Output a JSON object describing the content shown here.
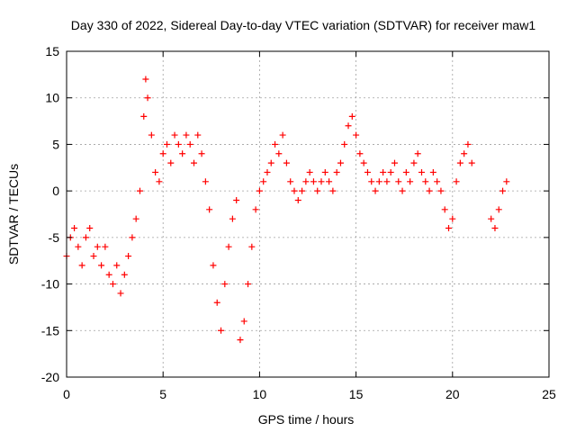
{
  "chart_data": {
    "type": "scatter",
    "title": "Day 330 of 2022, Sidereal Day-to-day VTEC variation (SDTVAR) for receiver maw1",
    "xlabel": "GPS time / hours",
    "ylabel": "SDTVAR / TECUs",
    "xlim": [
      0,
      25
    ],
    "ylim": [
      -20,
      15
    ],
    "x_ticks": [
      0,
      5,
      10,
      15,
      20,
      25
    ],
    "x_tick_labels": [
      "0",
      "5",
      "10",
      "15",
      "20",
      "25"
    ],
    "y_ticks": [
      -20,
      -15,
      -10,
      -5,
      0,
      5,
      10,
      15
    ],
    "y_tick_labels": [
      "-20",
      "-15",
      "-10",
      "-5",
      "0",
      "5",
      "10",
      "15"
    ],
    "grid": true,
    "marker": "+",
    "series": [
      {
        "name": "SDTVAR",
        "color": "#ff0000",
        "x": [
          0.0,
          0.2,
          0.4,
          0.6,
          0.8,
          1.0,
          1.2,
          1.4,
          1.6,
          1.8,
          2.0,
          2.2,
          2.4,
          2.6,
          2.8,
          3.0,
          3.2,
          3.4,
          3.6,
          3.8,
          4.0,
          4.1,
          4.2,
          4.4,
          4.6,
          4.8,
          5.0,
          5.2,
          5.4,
          5.6,
          5.8,
          6.0,
          6.2,
          6.4,
          6.6,
          6.8,
          7.0,
          7.2,
          7.4,
          7.6,
          7.8,
          8.0,
          8.2,
          8.4,
          8.6,
          8.8,
          9.0,
          9.2,
          9.4,
          9.6,
          9.8,
          10.0,
          10.2,
          10.4,
          10.6,
          10.8,
          11.0,
          11.2,
          11.4,
          11.6,
          11.8,
          12.0,
          12.2,
          12.4,
          12.6,
          12.8,
          13.0,
          13.2,
          13.4,
          13.6,
          13.8,
          14.0,
          14.2,
          14.4,
          14.6,
          14.8,
          15.0,
          15.2,
          15.4,
          15.6,
          15.8,
          16.0,
          16.2,
          16.4,
          16.6,
          16.8,
          17.0,
          17.2,
          17.4,
          17.6,
          17.8,
          18.0,
          18.2,
          18.4,
          18.6,
          18.8,
          19.0,
          19.2,
          19.4,
          19.6,
          19.8,
          20.0,
          20.2,
          20.4,
          20.6,
          20.8,
          21.0,
          22.0,
          22.2,
          22.4,
          22.6,
          22.8
        ],
        "values": [
          -7,
          -5,
          -4,
          -6,
          -8,
          -5,
          -4,
          -7,
          -6,
          -8,
          -6,
          -9,
          -10,
          -8,
          -11,
          -9,
          -7,
          -5,
          -3,
          0,
          8,
          12,
          10,
          6,
          2,
          1,
          4,
          5,
          3,
          6,
          5,
          4,
          6,
          5,
          3,
          6,
          4,
          1,
          -2,
          -8,
          -12,
          -15,
          -10,
          -6,
          -3,
          -1,
          -16,
          -14,
          -10,
          -6,
          -2,
          0,
          1,
          2,
          3,
          5,
          4,
          6,
          3,
          1,
          0,
          -1,
          0,
          1,
          2,
          1,
          0,
          1,
          2,
          1,
          0,
          2,
          3,
          5,
          7,
          8,
          6,
          4,
          3,
          2,
          1,
          0,
          1,
          2,
          1,
          2,
          3,
          1,
          0,
          2,
          1,
          3,
          4,
          2,
          1,
          0,
          2,
          1,
          0,
          -2,
          -4,
          -3,
          1,
          3,
          4,
          5,
          3,
          -3,
          -4,
          -2,
          0,
          1
        ]
      }
    ]
  }
}
